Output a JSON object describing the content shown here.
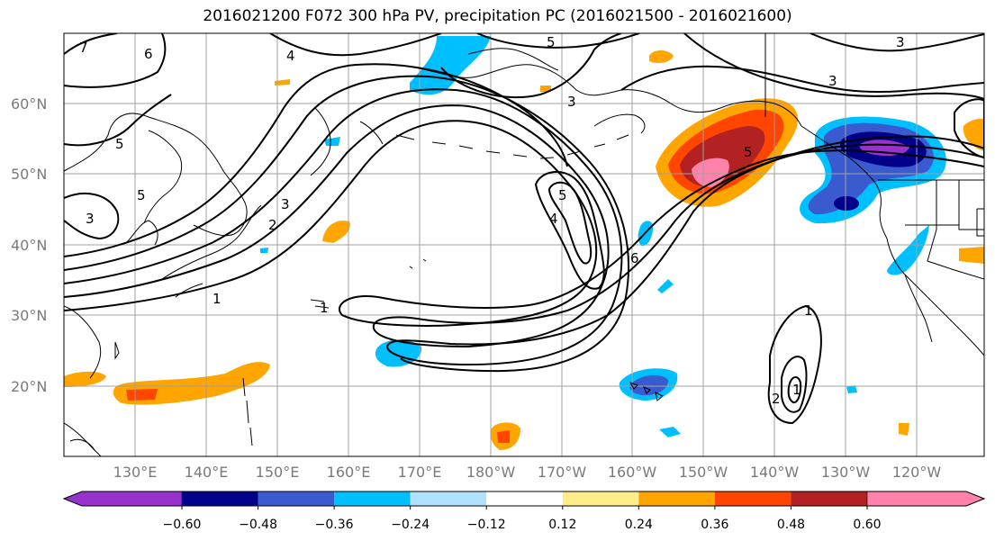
{
  "title": "2016021200 F072 300 hPa PV, precipitation PC (2016021500 - 2016021600)",
  "lat_labels": [
    "60°N",
    "50°N",
    "40°N",
    "30°N",
    "20°N"
  ],
  "lon_labels": [
    "130°E",
    "140°E",
    "150°E",
    "160°E",
    "170°E",
    "180°W",
    "170°W",
    "160°W",
    "150°W",
    "140°W",
    "130°W",
    "120°W"
  ],
  "contour_labels": [
    "7",
    "6",
    "4",
    "5",
    "3",
    "3",
    "5",
    "5",
    "3",
    "2",
    "1",
    "1",
    "4",
    "5",
    "6",
    "5",
    "3",
    "3",
    "1",
    "2",
    "1"
  ],
  "colorbar": {
    "labels": [
      "−0.60",
      "−0.48",
      "−0.36",
      "−0.24",
      "−0.12",
      "0.12",
      "0.24",
      "0.36",
      "0.48",
      "0.60"
    ],
    "colors": [
      "#9932CC",
      "#00008B",
      "#3A5BCF",
      "#00BFFF",
      "#B0E2FF",
      "#FFFFFF",
      "#FFEC8B",
      "#FFA500",
      "#FF4500",
      "#B22222",
      "#FF82AB"
    ]
  },
  "colors": {
    "contour": "#000000",
    "grid": "#a0a0a0",
    "coast": "#000000"
  }
}
